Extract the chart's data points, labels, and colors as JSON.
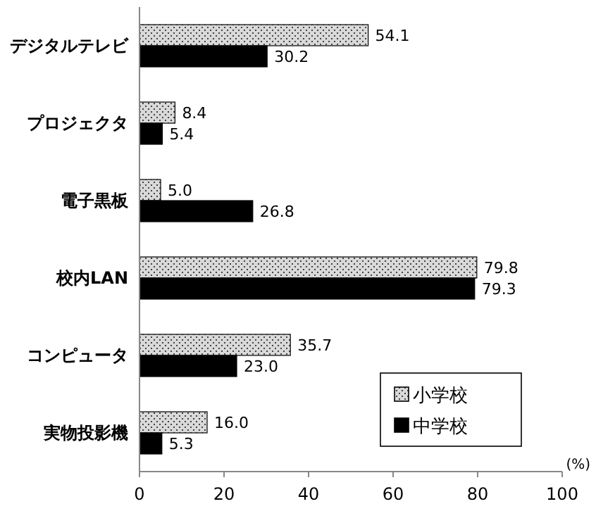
{
  "chart_data": {
    "type": "bar",
    "orientation": "horizontal",
    "xlabel": "(%)",
    "categories": [
      "デジタルテレビ",
      "プロジェクタ",
      "電子黒板",
      "校内LAN",
      "コンピュータ",
      "実物投影機"
    ],
    "series": [
      {
        "name": "小学校",
        "color": "#d9d9d9",
        "values": [
          54.1,
          8.4,
          5.0,
          79.8,
          35.7,
          16.0
        ],
        "value_labels": [
          "54.1",
          "8.4",
          "5.0",
          "79.8",
          "35.7",
          "16.0"
        ]
      },
      {
        "name": "中学校",
        "color": "#000000",
        "values": [
          30.2,
          5.4,
          26.8,
          79.3,
          23.0,
          5.3
        ],
        "value_labels": [
          "30.2",
          "5.4",
          "26.8",
          "79.3",
          "23.0",
          "5.3"
        ]
      }
    ],
    "xlim": [
      0,
      100
    ],
    "xticks": [
      0,
      20,
      40,
      60,
      80,
      100
    ],
    "legend": "bottom right"
  }
}
